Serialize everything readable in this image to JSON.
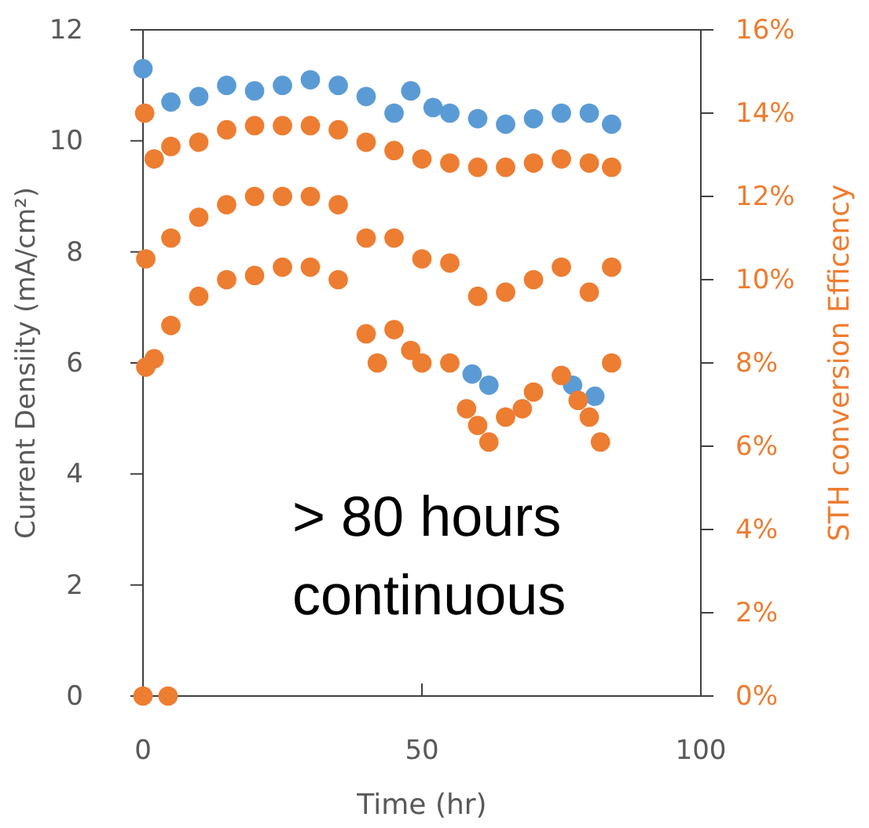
{
  "chart_data": {
    "type": "scatter",
    "xlabel": "Time (hr)",
    "ylabel": "Current Densiity  (mA/cm²)",
    "y2label": "STH conversion Efficency",
    "annotations": [
      "> 80 hours continuous"
    ],
    "marker": "circle",
    "grid": false,
    "xlim": [
      0,
      100
    ],
    "xticks": [
      0,
      50,
      100
    ],
    "ylim": [
      0,
      12
    ],
    "yticks": [
      0,
      2,
      4,
      6,
      8,
      10,
      12
    ],
    "y2lim": [
      0,
      16
    ],
    "y2ticks": [
      {
        "value": 0,
        "label": "0%"
      },
      {
        "value": 2,
        "label": "2%"
      },
      {
        "value": 4,
        "label": "4%"
      },
      {
        "value": 6,
        "label": "6%"
      },
      {
        "value": 8,
        "label": "8%"
      },
      {
        "value": 10,
        "label": "10%"
      },
      {
        "value": 12,
        "label": "12%"
      },
      {
        "value": 14,
        "label": "14%"
      },
      {
        "value": 16,
        "label": "16%"
      }
    ],
    "series": [
      {
        "color": "#5b9bd5",
        "x": [
          0,
          5,
          10,
          15,
          20,
          25,
          30,
          35,
          40,
          45,
          48,
          52,
          55,
          60,
          65,
          70,
          75,
          80,
          84,
          59,
          62,
          77,
          81
        ],
        "values": [
          11.3,
          10.7,
          10.8,
          11.0,
          10.9,
          11.0,
          11.1,
          11.0,
          10.8,
          10.5,
          10.9,
          10.6,
          10.5,
          10.4,
          10.3,
          10.4,
          10.5,
          10.5,
          10.3,
          5.8,
          5.6,
          5.6,
          5.4
        ]
      },
      {
        "color": "#ed7d31",
        "axis": "y2",
        "x": [
          0,
          4.5,
          0.3,
          2,
          5,
          10,
          15,
          20,
          25,
          30,
          35,
          40,
          45,
          50,
          55,
          60,
          65,
          70,
          75,
          80,
          84,
          0.5,
          2,
          5,
          10,
          15,
          20,
          25,
          30,
          35,
          40,
          42,
          45,
          48,
          50,
          55,
          58,
          60,
          62,
          65,
          68,
          70,
          75,
          78,
          80,
          82,
          84,
          0.5,
          5,
          10,
          15,
          20,
          25,
          30,
          35,
          40,
          45,
          50,
          55,
          60,
          65,
          70,
          75,
          80,
          84
        ],
        "values": [
          0,
          0,
          14.0,
          12.9,
          13.2,
          13.3,
          13.6,
          13.7,
          13.7,
          13.7,
          13.6,
          13.3,
          13.1,
          12.9,
          12.8,
          12.7,
          12.7,
          12.8,
          12.9,
          12.8,
          12.7,
          7.9,
          8.1,
          8.9,
          9.6,
          10.0,
          10.1,
          10.3,
          10.3,
          10.0,
          8.7,
          8.0,
          8.8,
          8.3,
          8.0,
          8.0,
          6.9,
          6.5,
          6.1,
          6.7,
          6.9,
          7.3,
          7.7,
          7.1,
          6.7,
          6.1,
          8.0,
          10.5,
          11.0,
          11.5,
          11.8,
          12.0,
          12.0,
          12.0,
          11.8,
          11.0,
          11.0,
          10.5,
          10.4,
          9.6,
          9.7,
          10.0,
          10.3,
          9.7,
          10.3
        ]
      }
    ]
  }
}
